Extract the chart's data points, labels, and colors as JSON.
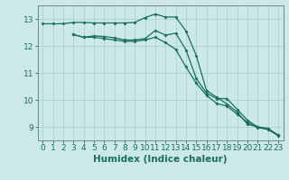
{
  "bg_color": "#cce8e8",
  "grid_color": "#aad4d4",
  "line_color": "#1a6e5e",
  "xlabel": "Humidex (Indice chaleur)",
  "xlabel_fontsize": 7.5,
  "tick_fontsize": 6.5,
  "xlim": [
    -0.5,
    23.5
  ],
  "ylim": [
    8.5,
    13.5
  ],
  "yticks": [
    9,
    10,
    11,
    12,
    13
  ],
  "xticks": [
    0,
    1,
    2,
    3,
    4,
    5,
    6,
    7,
    8,
    9,
    10,
    11,
    12,
    13,
    14,
    15,
    16,
    17,
    18,
    19,
    20,
    21,
    22,
    23
  ],
  "line1_x": [
    0,
    1,
    2,
    3,
    4,
    5,
    6,
    7,
    8,
    9,
    10,
    11,
    12,
    13,
    14,
    15,
    16,
    17,
    18,
    19,
    20,
    21,
    22,
    23
  ],
  "line1_y": [
    12.82,
    12.82,
    12.82,
    12.87,
    12.87,
    12.85,
    12.85,
    12.85,
    12.85,
    12.87,
    13.05,
    13.18,
    13.07,
    13.07,
    12.55,
    11.65,
    10.35,
    10.1,
    9.85,
    9.55,
    9.1,
    9.0,
    8.9,
    8.7
  ],
  "line2_x": [
    3,
    4,
    5,
    6,
    7,
    8,
    9,
    10,
    11,
    12,
    13,
    14,
    15,
    16,
    17,
    18,
    19,
    20,
    21,
    22,
    23
  ],
  "line2_y": [
    12.42,
    12.32,
    12.37,
    12.35,
    12.3,
    12.22,
    12.22,
    12.27,
    12.57,
    12.4,
    12.47,
    11.85,
    10.8,
    10.25,
    10.05,
    10.05,
    9.65,
    9.25,
    9.0,
    8.95,
    8.7
  ],
  "line3_x": [
    3,
    4,
    5,
    6,
    7,
    8,
    9,
    10,
    11,
    12,
    13,
    14,
    15,
    16,
    17,
    18,
    19,
    20,
    21,
    22,
    23
  ],
  "line3_y": [
    12.42,
    12.32,
    12.32,
    12.27,
    12.22,
    12.17,
    12.17,
    12.22,
    12.32,
    12.12,
    11.87,
    11.22,
    10.62,
    10.17,
    9.87,
    9.77,
    9.47,
    9.17,
    8.97,
    8.92,
    8.67
  ]
}
